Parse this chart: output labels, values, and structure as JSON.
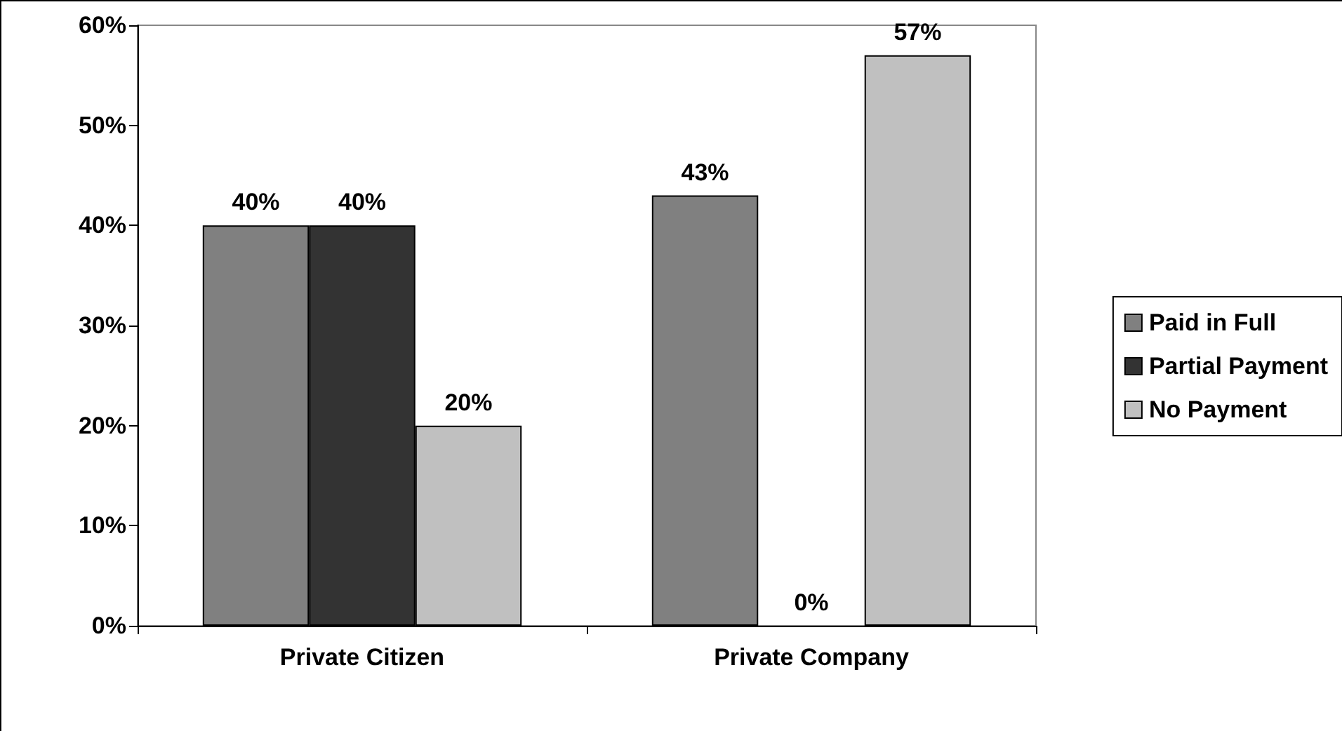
{
  "chart_data": {
    "type": "bar",
    "categories": [
      "Private Citizen",
      "Private Company"
    ],
    "series": [
      {
        "name": "Paid in Full",
        "color": "#808080",
        "values": [
          40,
          43
        ],
        "value_labels": [
          "40%",
          "43%"
        ]
      },
      {
        "name": "Partial Payment",
        "color": "#333333",
        "values": [
          40,
          0
        ],
        "value_labels": [
          "40%",
          "0%"
        ]
      },
      {
        "name": "No Payment",
        "color": "#c0c0c0",
        "values": [
          20,
          57
        ],
        "value_labels": [
          "20%",
          "57%"
        ]
      }
    ],
    "ylim": [
      0,
      60
    ],
    "yticks": [
      {
        "value": 0,
        "label": "0%"
      },
      {
        "value": 10,
        "label": "10%"
      },
      {
        "value": 20,
        "label": "20%"
      },
      {
        "value": 30,
        "label": "30%"
      },
      {
        "value": 40,
        "label": "40%"
      },
      {
        "value": 50,
        "label": "50%"
      },
      {
        "value": 60,
        "label": "60%"
      }
    ],
    "grid": false,
    "legend": "right"
  }
}
